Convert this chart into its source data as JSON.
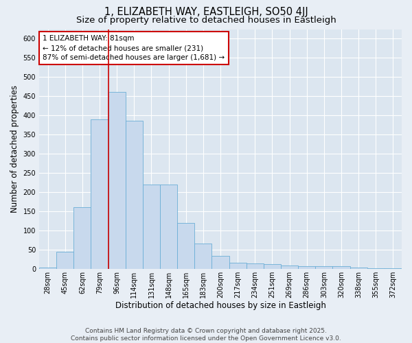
{
  "title": "1, ELIZABETH WAY, EASTLEIGH, SO50 4JJ",
  "subtitle": "Size of property relative to detached houses in Eastleigh",
  "xlabel": "Distribution of detached houses by size in Eastleigh",
  "ylabel": "Number of detached properties",
  "categories": [
    "28sqm",
    "45sqm",
    "62sqm",
    "79sqm",
    "96sqm",
    "114sqm",
    "131sqm",
    "148sqm",
    "165sqm",
    "183sqm",
    "200sqm",
    "217sqm",
    "234sqm",
    "251sqm",
    "269sqm",
    "286sqm",
    "303sqm",
    "320sqm",
    "338sqm",
    "355sqm",
    "372sqm"
  ],
  "values": [
    3,
    45,
    160,
    390,
    462,
    387,
    220,
    220,
    120,
    65,
    33,
    15,
    14,
    12,
    8,
    6,
    6,
    6,
    3,
    2,
    1
  ],
  "bar_color": "#c8d9ed",
  "bar_edge_color": "#6baed6",
  "marker_label": "1 ELIZABETH WAY: 81sqm",
  "annotation_line1": "← 12% of detached houses are smaller (231)",
  "annotation_line2": "87% of semi-detached houses are larger (1,681) →",
  "annotation_box_color": "#ffffff",
  "annotation_box_edge": "#cc0000",
  "vline_color": "#cc0000",
  "background_color": "#e8eef5",
  "plot_bg_color": "#dce6f0",
  "grid_color": "#ffffff",
  "footer": "Contains HM Land Registry data © Crown copyright and database right 2025.\nContains public sector information licensed under the Open Government Licence v3.0.",
  "title_fontsize": 10.5,
  "subtitle_fontsize": 9.5,
  "axis_label_fontsize": 8.5,
  "tick_fontsize": 7,
  "annotation_fontsize": 7.5,
  "footer_fontsize": 6.5,
  "vline_x_index": 3.5,
  "ylim_max": 625,
  "ytick_step": 50
}
